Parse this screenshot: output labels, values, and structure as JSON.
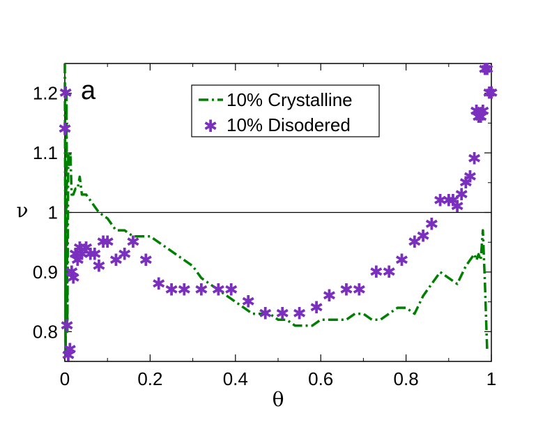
{
  "chart_data": {
    "type": "line",
    "title": "",
    "panel_label": "a",
    "xlabel": "θ",
    "ylabel": "ν",
    "xlim": [
      0,
      1
    ],
    "ylim": [
      0.75,
      1.25
    ],
    "x_ticks": [
      0,
      0.2,
      0.4,
      0.6,
      0.8,
      1
    ],
    "x_tick_labels": [
      "0",
      "0.2",
      "0.4",
      "0.6",
      "0.8",
      "1"
    ],
    "y_ticks": [
      0.8,
      0.9,
      1,
      1.1,
      1.2
    ],
    "y_tick_labels": [
      "0.8",
      "0.9",
      "1",
      "1.1",
      "1.2"
    ],
    "reference_line": 1.0,
    "grid": false,
    "legend_position": "top-center",
    "colors": {
      "crystalline": "#008000",
      "disordered": "#7b2fbf"
    },
    "series": [
      {
        "name": "10% Crystalline",
        "style": "dash-dot line",
        "x": [
          0.0,
          0.002,
          0.004,
          0.006,
          0.008,
          0.01,
          0.013,
          0.016,
          0.02,
          0.025,
          0.03,
          0.035,
          0.04,
          0.05,
          0.06,
          0.07,
          0.08,
          0.1,
          0.12,
          0.14,
          0.16,
          0.18,
          0.2,
          0.22,
          0.24,
          0.26,
          0.28,
          0.3,
          0.32,
          0.34,
          0.36,
          0.38,
          0.4,
          0.42,
          0.44,
          0.46,
          0.48,
          0.5,
          0.52,
          0.54,
          0.56,
          0.58,
          0.6,
          0.62,
          0.64,
          0.66,
          0.68,
          0.7,
          0.72,
          0.74,
          0.76,
          0.78,
          0.8,
          0.82,
          0.84,
          0.86,
          0.88,
          0.9,
          0.92,
          0.94,
          0.95,
          0.96,
          0.965,
          0.97,
          0.975,
          0.98,
          0.985,
          0.99
        ],
        "values": [
          1.25,
          0.76,
          1.2,
          0.8,
          1.1,
          1.08,
          1.1,
          1.03,
          1.03,
          1.04,
          1.04,
          1.06,
          1.03,
          1.03,
          1.02,
          1.01,
          1.0,
          0.99,
          0.97,
          0.97,
          0.96,
          0.96,
          0.96,
          0.95,
          0.94,
          0.93,
          0.92,
          0.91,
          0.89,
          0.88,
          0.87,
          0.86,
          0.85,
          0.84,
          0.83,
          0.83,
          0.83,
          0.82,
          0.82,
          0.81,
          0.81,
          0.81,
          0.82,
          0.82,
          0.82,
          0.82,
          0.83,
          0.83,
          0.82,
          0.82,
          0.83,
          0.84,
          0.84,
          0.83,
          0.86,
          0.88,
          0.9,
          0.89,
          0.88,
          0.91,
          0.92,
          0.93,
          0.92,
          0.93,
          0.92,
          0.97,
          0.88,
          0.77
        ]
      },
      {
        "name": "10% Disodered",
        "style": "asterisk markers",
        "x": [
          0.0,
          0.002,
          0.005,
          0.008,
          0.012,
          0.016,
          0.02,
          0.025,
          0.03,
          0.035,
          0.04,
          0.05,
          0.06,
          0.07,
          0.08,
          0.09,
          0.1,
          0.12,
          0.14,
          0.16,
          0.19,
          0.22,
          0.25,
          0.28,
          0.32,
          0.36,
          0.39,
          0.43,
          0.47,
          0.51,
          0.55,
          0.59,
          0.62,
          0.66,
          0.69,
          0.73,
          0.76,
          0.79,
          0.82,
          0.84,
          0.86,
          0.88,
          0.9,
          0.91,
          0.92,
          0.93,
          0.94,
          0.95,
          0.96,
          0.965,
          0.97,
          0.975,
          0.98,
          0.985,
          0.99,
          0.995,
          1.0
        ],
        "values": [
          1.14,
          1.2,
          0.81,
          0.76,
          0.77,
          0.9,
          0.89,
          0.93,
          0.92,
          0.94,
          0.93,
          0.94,
          0.93,
          0.93,
          0.91,
          0.95,
          0.95,
          0.92,
          0.93,
          0.95,
          0.92,
          0.88,
          0.87,
          0.87,
          0.87,
          0.87,
          0.87,
          0.85,
          0.83,
          0.83,
          0.83,
          0.84,
          0.86,
          0.87,
          0.87,
          0.9,
          0.9,
          0.92,
          0.95,
          0.96,
          0.98,
          1.02,
          1.02,
          1.02,
          1.01,
          1.03,
          1.05,
          1.06,
          1.09,
          1.17,
          1.16,
          1.16,
          1.17,
          1.24,
          1.24,
          1.2,
          1.2
        ]
      }
    ]
  }
}
